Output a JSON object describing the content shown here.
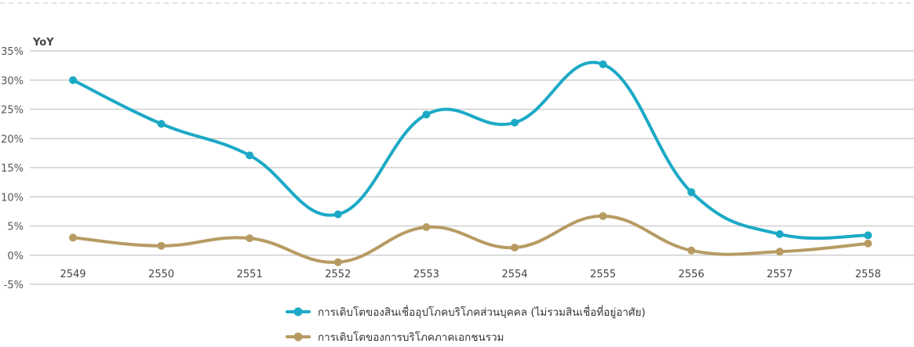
{
  "chart_data": {
    "type": "line",
    "ylabel": "YoY",
    "ylim": [
      -5,
      35
    ],
    "y_ticks": [
      35,
      30,
      25,
      20,
      15,
      10,
      5,
      0,
      -5
    ],
    "y_tick_labels": [
      "35%",
      "30%",
      "25%",
      "20%",
      "15%",
      "10%",
      "5%",
      "0%",
      "-5%"
    ],
    "categories": [
      "2549",
      "2550",
      "2551",
      "2552",
      "2553",
      "2554",
      "2555",
      "2556",
      "2557",
      "2558"
    ],
    "grid": true,
    "legend_position": "bottom",
    "series": [
      {
        "name": "การเติบโตของสินเชื่ออุปโภคบริโภคส่วนบุคคล (ไม่รวมสินเชื่อที่อยู่อาศัย)",
        "color": "#1ba9c6",
        "values": [
          30.0,
          22.5,
          17.1,
          7.0,
          24.1,
          22.7,
          32.7,
          10.8,
          3.6,
          3.4
        ]
      },
      {
        "name": "การเติบโตของการบริโภคภาคเอกชนรวม",
        "color": "#b79b62",
        "values": [
          3.0,
          1.6,
          2.9,
          -1.2,
          4.8,
          1.3,
          6.7,
          0.8,
          0.6,
          2.0
        ]
      }
    ]
  }
}
